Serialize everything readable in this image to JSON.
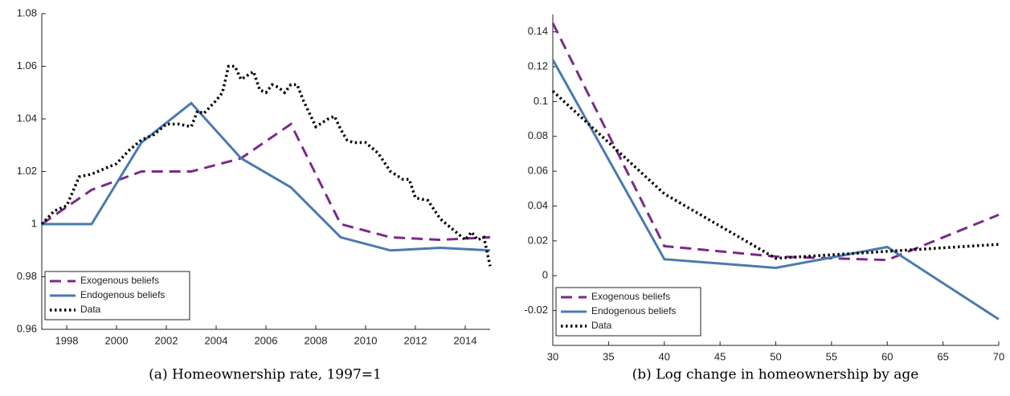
{
  "chart_data": [
    {
      "type": "line",
      "title": "(a) Homeownership rate, 1997=1",
      "xlim": [
        1997,
        2015
      ],
      "xticks": [
        1998,
        2000,
        2002,
        2004,
        2006,
        2008,
        2010,
        2012,
        2014
      ],
      "ylim": [
        0.96,
        1.08
      ],
      "yticks": [
        0.96,
        0.98,
        1,
        1.02,
        1.04,
        1.06,
        1.08
      ],
      "legend": "lower left",
      "series": [
        {
          "name": "Exogenous beliefs",
          "color": "#7b2a8a",
          "dash": "dashed",
          "x": [
            1997,
            1999,
            2001,
            2003,
            2005,
            2007,
            2009,
            2011,
            2013,
            2015
          ],
          "values": [
            1.0,
            1.013,
            1.02,
            1.02,
            1.025,
            1.038,
            1.0,
            0.995,
            0.994,
            0.995
          ]
        },
        {
          "name": "Endogenous beliefs",
          "color": "#4a7ab0",
          "dash": "solid",
          "x": [
            1997,
            1999,
            2001,
            2003,
            2005,
            2007,
            2009,
            2011,
            2013,
            2015
          ],
          "values": [
            1.0,
            1.0,
            1.031,
            1.046,
            1.025,
            1.014,
            0.995,
            0.99,
            0.991,
            0.99
          ]
        },
        {
          "name": "Data",
          "color": "#000000",
          "dash": "dotted",
          "x": [
            1997,
            1997.5,
            1998,
            1998.5,
            1999,
            1999.5,
            2000,
            2000.5,
            2001,
            2001.5,
            2002,
            2002.5,
            2003,
            2003.25,
            2003.5,
            2004,
            2004.25,
            2004.5,
            2004.75,
            2005,
            2005.5,
            2005.75,
            2006,
            2006.25,
            2006.5,
            2006.75,
            2007,
            2007.25,
            2007.5,
            2007.75,
            2008,
            2008.5,
            2008.75,
            2009,
            2009.25,
            2009.5,
            2010,
            2010.5,
            2011,
            2011.5,
            2011.75,
            2012,
            2012.5,
            2013,
            2013.5,
            2014,
            2014.25,
            2014.5,
            2014.75,
            2015
          ],
          "values": [
            1.0,
            1.005,
            1.007,
            1.018,
            1.019,
            1.021,
            1.023,
            1.028,
            1.032,
            1.034,
            1.038,
            1.038,
            1.037,
            1.043,
            1.042,
            1.047,
            1.05,
            1.06,
            1.06,
            1.055,
            1.058,
            1.051,
            1.05,
            1.053,
            1.052,
            1.05,
            1.053,
            1.053,
            1.047,
            1.042,
            1.037,
            1.04,
            1.041,
            1.036,
            1.032,
            1.031,
            1.031,
            1.027,
            1.02,
            1.017,
            1.017,
            1.01,
            1.009,
            1.002,
            0.998,
            0.994,
            0.997,
            0.994,
            0.995,
            0.984
          ]
        }
      ]
    },
    {
      "type": "line",
      "title": "(b) Log change in homeownership by age",
      "xlim": [
        30,
        70
      ],
      "xticks": [
        30,
        35,
        40,
        45,
        50,
        55,
        60,
        65,
        70
      ],
      "ylim": [
        -0.04,
        0.15
      ],
      "yticks": [
        -0.02,
        0,
        0.02,
        0.04,
        0.06,
        0.08,
        0.1,
        0.12,
        0.14
      ],
      "legend": "lower left",
      "series": [
        {
          "name": "Exogenous beliefs",
          "color": "#7b2a8a",
          "dash": "dashed",
          "x": [
            30,
            40,
            50,
            60,
            70
          ],
          "values": [
            0.145,
            0.017,
            0.011,
            0.009,
            0.035
          ]
        },
        {
          "name": "Endogenous beliefs",
          "color": "#4a7ab0",
          "dash": "solid",
          "x": [
            30,
            40,
            50,
            55,
            60,
            70
          ],
          "values": [
            0.124,
            0.0095,
            0.0045,
            0.0105,
            0.0165,
            -0.025
          ]
        },
        {
          "name": "Data",
          "color": "#000000",
          "dash": "dotted",
          "x": [
            30,
            40,
            50,
            60,
            70
          ],
          "values": [
            0.106,
            0.047,
            0.01,
            0.014,
            0.018
          ]
        }
      ]
    }
  ]
}
